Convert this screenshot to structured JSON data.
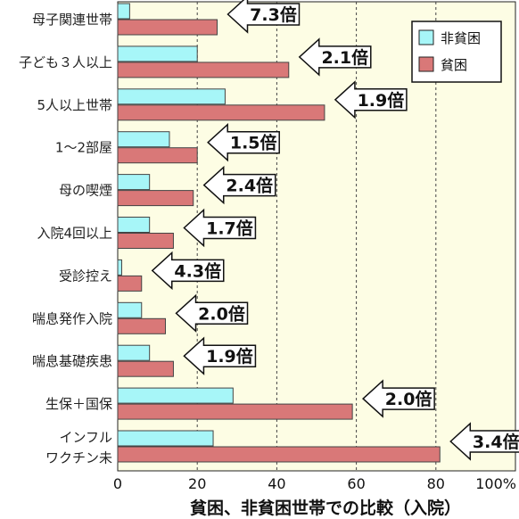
{
  "chart_data": {
    "type": "bar",
    "orientation": "horizontal",
    "xlabel": "貧困、非貧困世帯での比較（入院）",
    "xlim": [
      0,
      100
    ],
    "xticks": [
      "0",
      "20",
      "40",
      "60",
      "80",
      "100%"
    ],
    "grid": true,
    "legend_position": "top-right",
    "categories": [
      [
        "母子関連世帯"
      ],
      [
        "子ども３人以上"
      ],
      [
        "5人以上世帯"
      ],
      [
        "1～2部屋"
      ],
      [
        "母の喫煙"
      ],
      [
        "入院4回以上"
      ],
      [
        "受診控え"
      ],
      [
        "喘息発作入院"
      ],
      [
        "喘息基礎疾患"
      ],
      [
        "生保＋国保"
      ],
      [
        "インフル",
        "ワクチン未"
      ]
    ],
    "series": [
      {
        "name": "非貧困",
        "color": "#a7f6f8",
        "values": [
          3,
          20,
          27,
          13,
          8,
          8,
          1,
          6,
          8,
          29,
          24
        ]
      },
      {
        "name": "貧困",
        "color": "#d97878",
        "values": [
          25,
          43,
          52,
          20,
          19,
          14,
          6,
          12,
          14,
          59,
          81
        ]
      }
    ],
    "ratios": [
      "7.3倍",
      "2.1倍",
      "1.9倍",
      "1.5倍",
      "2.4倍",
      "1.7倍",
      "4.3倍",
      "2.0倍",
      "1.9倍",
      "2.0倍",
      "3.4倍"
    ],
    "colors": {
      "plot_background": "#fdfde4",
      "bar_outline": "#444444"
    }
  }
}
